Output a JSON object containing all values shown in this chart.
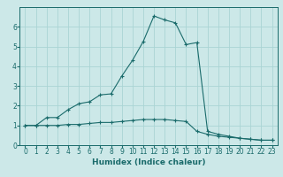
{
  "xlabel": "Humidex (Indice chaleur)",
  "ylabel": "",
  "bg_color": "#cce8e8",
  "line_color": "#1a6b6b",
  "xlim": [
    -0.5,
    23.5
  ],
  "ylim": [
    0,
    7
  ],
  "xticks": [
    0,
    1,
    2,
    3,
    4,
    5,
    6,
    7,
    8,
    9,
    10,
    11,
    12,
    13,
    14,
    15,
    16,
    17,
    18,
    19,
    20,
    21,
    22,
    23
  ],
  "yticks": [
    0,
    1,
    2,
    3,
    4,
    5,
    6
  ],
  "grid_color": "#aad4d4",
  "series1_x": [
    0,
    1,
    2,
    3,
    4,
    5,
    6,
    7,
    8,
    9,
    10,
    11,
    12,
    13,
    14,
    15,
    16,
    17,
    18,
    19,
    20,
    21,
    22,
    23
  ],
  "series1_y": [
    1.0,
    1.0,
    1.4,
    1.4,
    1.8,
    2.1,
    2.2,
    2.55,
    2.6,
    3.5,
    4.3,
    5.25,
    6.55,
    6.35,
    6.2,
    5.1,
    5.2,
    0.7,
    0.55,
    0.45,
    0.35,
    0.3,
    0.25,
    0.25
  ],
  "series2_x": [
    0,
    1,
    2,
    3,
    4,
    5,
    6,
    7,
    8,
    9,
    10,
    11,
    12,
    13,
    14,
    15,
    16,
    17,
    18,
    19,
    20,
    21,
    22,
    23
  ],
  "series2_y": [
    1.0,
    1.0,
    1.0,
    1.0,
    1.05,
    1.05,
    1.1,
    1.15,
    1.15,
    1.2,
    1.25,
    1.3,
    1.3,
    1.3,
    1.25,
    1.2,
    0.7,
    0.55,
    0.45,
    0.4,
    0.35,
    0.3,
    0.25,
    0.25
  ],
  "tick_fontsize": 5.5,
  "xlabel_fontsize": 6.5
}
